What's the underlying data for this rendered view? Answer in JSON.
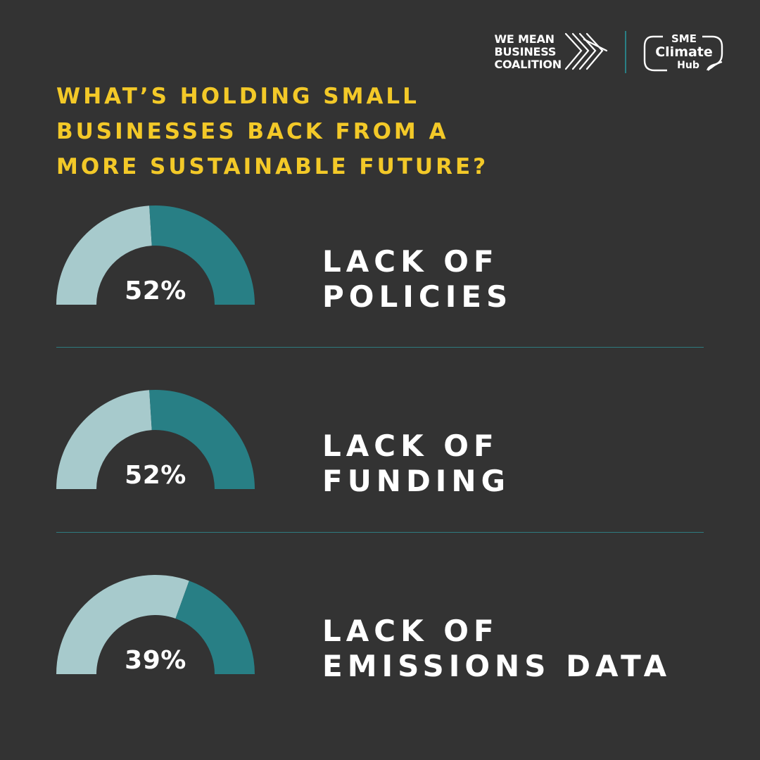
{
  "colors": {
    "background": "#333333",
    "headline": "#f3c928",
    "gauge_light": "#a7cacc",
    "gauge_dark": "#287f85",
    "divider": "#2f7b80",
    "text": "#ffffff"
  },
  "logos": {
    "wmb_lines": [
      "WE MEAN",
      "BUSINESS",
      "COALITION"
    ],
    "sme_lines": [
      "SME",
      "Climate",
      "Hub"
    ]
  },
  "headline_lines": [
    "WHAT’S HOLDING SMALL",
    "BUSINESSES BACK FROM A",
    "MORE SUSTAINABLE FUTURE?"
  ],
  "chart_data": [
    {
      "type": "pie",
      "value": 52,
      "value_label": "52%",
      "label_lines": [
        "LACK OF",
        "POLICIES"
      ]
    },
    {
      "type": "pie",
      "value": 52,
      "value_label": "52%",
      "label_lines": [
        "LACK OF",
        "FUNDING"
      ]
    },
    {
      "type": "pie",
      "value": 39,
      "value_label": "39%",
      "label_lines": [
        "LACK OF",
        "EMISSIONS DATA"
      ]
    }
  ]
}
